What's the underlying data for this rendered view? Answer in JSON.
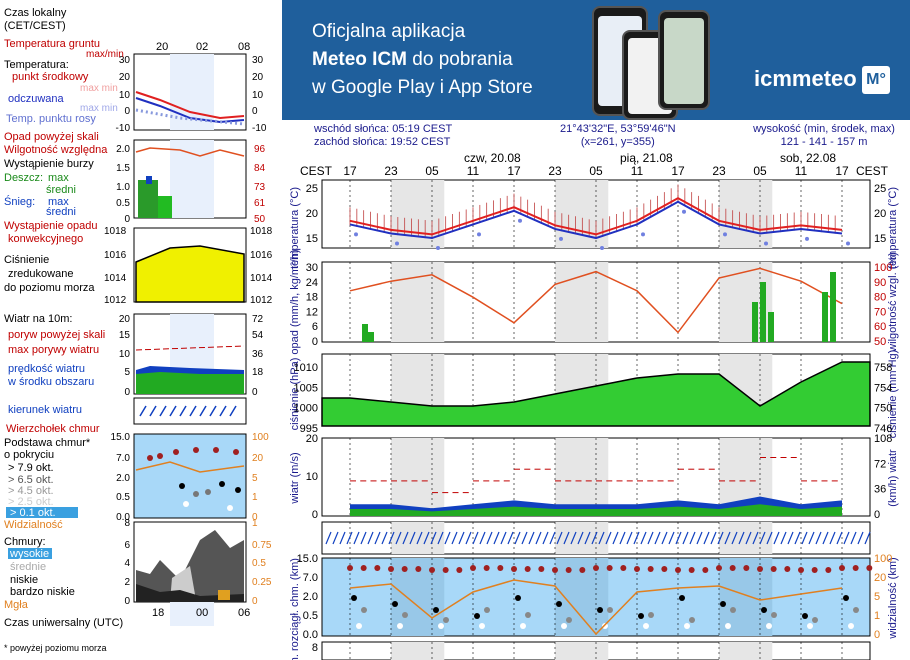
{
  "banner": {
    "line1": "Oficjalna aplikacja",
    "line2_bold": "Meteo ICM",
    "line2_rest": " do pobrania",
    "line3": "w Google Play i App Store",
    "logo_text": "icmmeteo",
    "logo_badge": "M°"
  },
  "info": {
    "sunrise": "wschód słońca: 05:19 CEST",
    "sunset": "zachód słońca: 19:52 CEST",
    "coords": "21°43'32\"E, 53°59'46\"N",
    "grid": "(x=261,  y=355)",
    "elevation_label": "wysokość (min, środek, max)",
    "elevation_values": "121 - 141 - 157 m"
  },
  "dates": [
    "czw, 20.08",
    "pią, 21.08",
    "sob, 22.08"
  ],
  "hours": [
    "17",
    "23",
    "05",
    "11",
    "17",
    "23",
    "05",
    "11",
    "17",
    "23",
    "05",
    "11",
    "17"
  ],
  "tz_label": "CEST",
  "legend": {
    "local_time": "Czas lokalny",
    "local_time_tz": "(CET/CEST)",
    "local_ticks": [
      "20",
      "02",
      "08"
    ],
    "ground_temp": "Temperatura gruntu",
    "ground_temp_sub": "max/min",
    "temperature": "Temperatura:",
    "midpoint": "punkt środkowy",
    "max_label": "max min",
    "felt": "odczuwana",
    "felt_sub": "max min",
    "dew": "Temp. punktu rosy",
    "temp_ticks_left": [
      "30",
      "20",
      "10",
      "0",
      "-10"
    ],
    "temp_ticks_right": [
      "30",
      "20",
      "10",
      "0",
      "-10"
    ],
    "precip_above": "Opad powyżej skali",
    "humidity": "Wilgotność względna",
    "storm": "Wystąpienie burzy",
    "rain": "Deszcz:",
    "rain_max": "max",
    "rain_mid": "średni",
    "snow": "Śnieg:",
    "snow_max": "max",
    "snow_mid": "średni",
    "convective": "Wystąpienie opadu",
    "convective_sub": "konwekcyjnego",
    "precip_ticks_left": [
      "2.0",
      "1.5",
      "1.0",
      "0.5",
      "0"
    ],
    "precip_ticks_right": [
      "96",
      "84",
      "73",
      "61",
      "50"
    ],
    "pressure": "Ciśnienie",
    "pressure_sub1": "zredukowane",
    "pressure_sub2": "do poziomu morza",
    "pressure_ticks": [
      "1018",
      "1016",
      "1014",
      "1012"
    ],
    "wind": "Wiatr na 10m:",
    "gust_above": "poryw powyżej skali",
    "gust_max": "max porywy wiatru",
    "wind_speed": "prędkość wiatru",
    "wind_speed_sub": "w środku obszaru",
    "wind_ticks_left": [
      "20",
      "15",
      "10",
      "5",
      "0"
    ],
    "wind_ticks_right": [
      "72",
      "54",
      "36",
      "18",
      "0"
    ],
    "wind_dir": "kierunek wiatru",
    "cloud_top": "Wierzchołek chmur",
    "cloud_base": "Podstawa chmur*",
    "cloud_base_sub": "o pokryciu",
    "okt1": "> 7.9 okt.",
    "okt2": "> 6.5 okt.",
    "okt3": "> 4.5 okt.",
    "okt4": "> 2.5 okt.",
    "okt5": "> 0.1 okt.",
    "cloud_ticks_left": [
      "15.0",
      "7.0",
      "2.0",
      "0.5",
      "0.0"
    ],
    "cloud_ticks_right": [
      "100",
      "20",
      "5",
      "1",
      "0"
    ],
    "visibility": "Widzialność",
    "clouds": "Chmury:",
    "high": "wysokie",
    "mid": "średnie",
    "low": "niskie",
    "very_low": "bardzo niskie",
    "fog": "Mgła",
    "cloudcov_ticks_left": [
      "8",
      "6",
      "4",
      "2",
      "0"
    ],
    "cloudcov_ticks_right": [
      "1",
      "0.75",
      "0.5",
      "0.25",
      "0"
    ],
    "utc": "Czas uniwersalny (UTC)",
    "utc_ticks": [
      "18",
      "00",
      "06"
    ],
    "footnote": "* powyżej poziomu morza"
  },
  "axes": {
    "temperature": "temperatura (°C)",
    "precip": "opad (mm/h, kg/m²/h)",
    "humidity": "wilgotność wzgl. (%)",
    "pressure": "ciśnienie (hPa)",
    "pressure_r": "ciśnienie (mm Hg)",
    "wind": "wiatr (m/s)",
    "wind_r": "(km/h) wiatr",
    "cloud": "pion. rozciągł. chm. (km)",
    "visibility_r": "widzialność (km)",
    "temp_ticks": [
      "25",
      "20",
      "15"
    ],
    "precip_ticks": [
      "30",
      "24",
      "18",
      "12",
      "6",
      "0"
    ],
    "hum_ticks": [
      "100",
      "90",
      "80",
      "70",
      "60",
      "50"
    ],
    "press_ticks": [
      "1010",
      "1005",
      "1000",
      "995"
    ],
    "press_ticks_r": [
      "758",
      "754",
      "750",
      "746"
    ],
    "wind_ticks": [
      "20",
      "10",
      "0"
    ],
    "wind_ticks_r": [
      "108",
      "72",
      "36",
      "0"
    ],
    "cloud_ticks": [
      "15.0",
      "7.0",
      "2.0",
      "0.5",
      "0.0"
    ],
    "vis_ticks": [
      "100",
      "20",
      "5",
      "1",
      "0"
    ],
    "bottom_tick": "8"
  },
  "colors": {
    "banner": "#1f5f9c",
    "temp_line": "#e02020",
    "felt_line": "#2030c0",
    "humidity_line": "#e05020",
    "pressure_fill": "#33cc33",
    "wind_fill": "#1040c0",
    "sky": "#a8d8f8"
  },
  "chart_data": {
    "type": "line",
    "x": [
      "17",
      "23",
      "05",
      "11",
      "17",
      "23",
      "05",
      "11",
      "17",
      "23",
      "05",
      "11",
      "17"
    ],
    "series": [
      {
        "name": "temperatura",
        "values": [
          18,
          16,
          15,
          18,
          21,
          17,
          15,
          18,
          23,
          18,
          16,
          17,
          16
        ]
      },
      {
        "name": "wilgotność wzgl.",
        "values": [
          82,
          88,
          92,
          78,
          62,
          86,
          94,
          82,
          56,
          90,
          96,
          88,
          74
        ]
      },
      {
        "name": "ciśnienie",
        "values": [
          1002,
          1001,
          1000,
          1000,
          1001,
          1003,
          1005,
          1007,
          1008,
          1008,
          1000,
          1006,
          1011
        ]
      },
      {
        "name": "wiatr",
        "values": [
          3,
          3,
          2,
          3,
          4,
          3,
          3,
          3,
          4,
          3,
          5,
          3,
          4
        ]
      }
    ]
  }
}
